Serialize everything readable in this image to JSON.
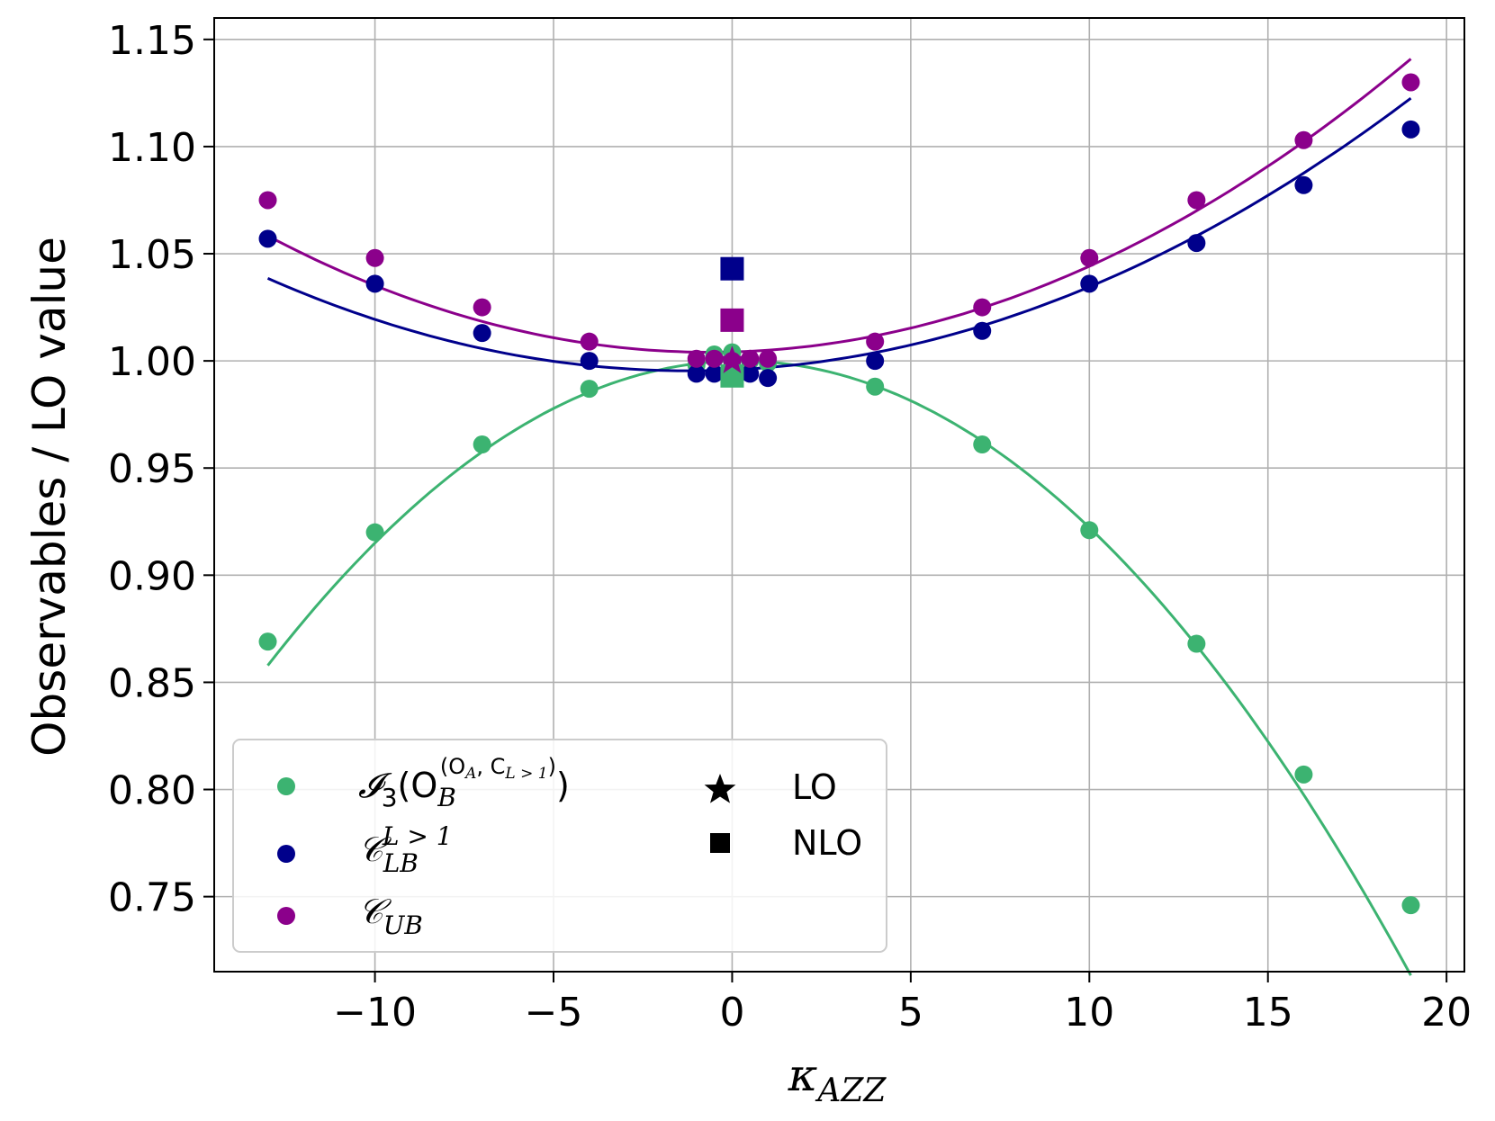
{
  "chart_data": {
    "type": "scatter",
    "title": "",
    "xlabel": "κ",
    "xlabel_sub": "AZZ",
    "ylabel": "Observables / LO value",
    "xlim": [
      -14.5,
      20.5
    ],
    "ylim": [
      0.715,
      1.16
    ],
    "xticks": [
      -10,
      -5,
      0,
      5,
      10,
      15,
      20
    ],
    "xtick_labels": [
      "−10",
      "−5",
      "0",
      "5",
      "10",
      "15",
      "20"
    ],
    "yticks": [
      0.75,
      0.8,
      0.85,
      0.9,
      0.95,
      1.0,
      1.05,
      1.1,
      1.15
    ],
    "ytick_labels": [
      "0.75",
      "0.80",
      "0.85",
      "0.90",
      "0.95",
      "1.00",
      "1.05",
      "1.10",
      "1.15"
    ],
    "grid": true,
    "legend_position": "bottom-left",
    "series": [
      {
        "name": "I3",
        "color": "#3cb371",
        "x": [
          -13,
          -10,
          -7,
          -4,
          -1,
          -0.5,
          0,
          0.5,
          1,
          4,
          7,
          10,
          13,
          16,
          19
        ],
        "y": [
          0.869,
          0.92,
          0.961,
          0.987,
          0.998,
          1.003,
          1.004,
          1.0,
          0.999,
          0.988,
          0.961,
          0.921,
          0.868,
          0.807,
          0.746
        ],
        "fit": [
          0.99992,
          0.00036,
          -0.000813
        ],
        "nlo": 0.993
      },
      {
        "name": "C_LB^{L>1}",
        "color": "#00008b",
        "x": [
          -13,
          -10,
          -7,
          -4,
          -1,
          -0.5,
          0,
          0.5,
          1,
          4,
          7,
          10,
          13,
          16,
          19
        ],
        "y": [
          1.057,
          1.036,
          1.013,
          1.0,
          0.994,
          0.994,
          0.995,
          0.994,
          0.992,
          1.0,
          1.014,
          1.036,
          1.055,
          1.082,
          1.108
        ],
        "fit": [
          0.99584,
          0.00076,
          0.000311
        ],
        "nlo": 1.043
      },
      {
        "name": "C_UB",
        "color": "#8b008b",
        "x": [
          -13,
          -10,
          -7,
          -4,
          -1,
          -0.5,
          0,
          0.5,
          1,
          4,
          7,
          10,
          13,
          16,
          19
        ],
        "y": [
          1.075,
          1.048,
          1.025,
          1.009,
          1.001,
          1.001,
          1.0,
          1.001,
          1.001,
          1.009,
          1.025,
          1.048,
          1.075,
          1.103,
          1.13
        ],
        "fit": [
          1.00418,
          0.00045,
          0.000355
        ],
        "nlo": 1.019
      }
    ],
    "lo_point": {
      "x": 0,
      "y": 1.0,
      "color": "#8b008b"
    },
    "nlo_x": 0,
    "legend": {
      "series": [
        {
          "symbol": "𝓘",
          "sub": "3",
          "open": "(O",
          "sub2": "B",
          "sup": "(O",
          "supsub": "A",
          "supmid": ", C",
          "supsub2": "L > 1",
          "supend": ")",
          "close": ")",
          "color": "#3cb371"
        },
        {
          "symbol": "𝒞",
          "sub": "LB",
          "sup": "L > 1",
          "color": "#00008b"
        },
        {
          "symbol": "𝒞",
          "sub": "UB",
          "color": "#8b008b"
        }
      ],
      "markers": [
        {
          "label": "LO",
          "marker": "star"
        },
        {
          "label": "NLO",
          "marker": "square"
        }
      ]
    }
  }
}
